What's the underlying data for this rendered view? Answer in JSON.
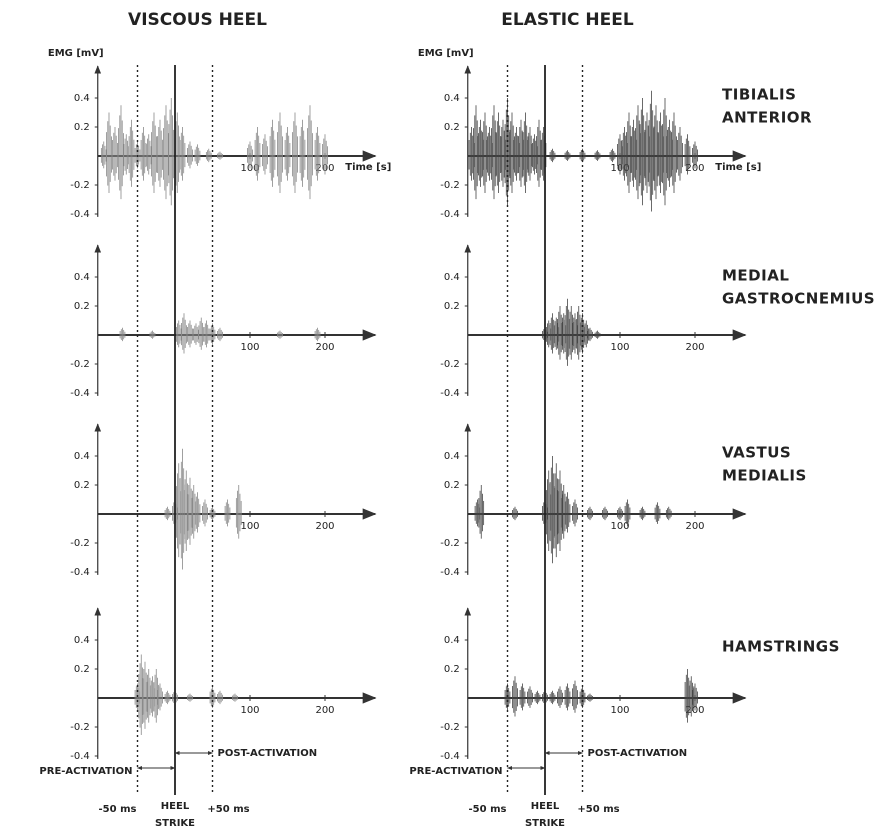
{
  "chart_data": [
    {
      "type": "emg",
      "title": "VISCOUS HEEL",
      "ylabel": "EMG [mV]",
      "xlabel": "Time [s]",
      "xlim": [
        -103,
        267
      ],
      "ylim": [
        -0.42,
        0.62
      ],
      "xticks": [
        100,
        200
      ],
      "yticks": [
        -0.4,
        -0.2,
        0.2,
        0.4
      ],
      "markers": [
        -50,
        0,
        50
      ],
      "annotations": {
        "pre": "PRE-ACTIVATION",
        "post": "POST-ACTIVATION",
        "minus": "-50 ms",
        "heel": "HEEL",
        "strike": "STRIKE",
        "plus": "+50 ms"
      },
      "panels": [
        {
          "t": [
            -95,
            -88,
            -80,
            -72,
            -65,
            -58,
            -50,
            -42,
            -35,
            -28,
            -20,
            -12,
            -5,
            3,
            10,
            20,
            30,
            45,
            60,
            100,
            110,
            120,
            130,
            140,
            150,
            160,
            170,
            180,
            190,
            200
          ],
          "amp": [
            0.1,
            0.3,
            0.2,
            0.35,
            0.15,
            0.25,
            0.1,
            0.2,
            0.15,
            0.3,
            0.25,
            0.35,
            0.4,
            0.3,
            0.2,
            0.1,
            0.08,
            0.05,
            0.03,
            0.1,
            0.2,
            0.15,
            0.25,
            0.3,
            0.2,
            0.3,
            0.25,
            0.35,
            0.2,
            0.15
          ]
        },
        {
          "t": [
            -70,
            -30,
            5,
            12,
            20,
            28,
            35,
            42,
            50,
            60,
            140,
            190
          ],
          "amp": [
            0.05,
            0.03,
            0.1,
            0.15,
            0.1,
            0.08,
            0.12,
            0.1,
            0.08,
            0.05,
            0.03,
            0.05
          ]
        },
        {
          "t": [
            -10,
            0,
            5,
            10,
            15,
            20,
            25,
            30,
            40,
            50,
            70,
            85
          ],
          "amp": [
            0.05,
            0.1,
            0.35,
            0.45,
            0.3,
            0.25,
            0.2,
            0.15,
            0.1,
            0.05,
            0.1,
            0.2
          ]
        },
        {
          "t": [
            -50,
            -45,
            -40,
            -35,
            -30,
            -25,
            -20,
            -10,
            0,
            20,
            50,
            60,
            80
          ],
          "amp": [
            0.1,
            0.3,
            0.25,
            0.2,
            0.15,
            0.2,
            0.1,
            0.05,
            0.05,
            0.03,
            0.08,
            0.05,
            0.03
          ]
        }
      ]
    },
    {
      "type": "emg",
      "title": "ELASTIC HEEL",
      "ylabel": "EMG [mV]",
      "xlabel": "Time [s]",
      "xlim": [
        -103,
        267
      ],
      "ylim": [
        -0.42,
        0.62
      ],
      "xticks": [
        100,
        200
      ],
      "yticks": [
        -0.4,
        -0.2,
        0.2,
        0.4
      ],
      "markers": [
        -50,
        0,
        50
      ],
      "annotations": {
        "pre": "PRE-ACTIVATION",
        "post": "POST-ACTIVATION",
        "minus": "-50 ms",
        "heel": "HEEL",
        "strike": "STRIKE",
        "plus": "+50 ms"
      },
      "panels": [
        {
          "t": [
            -98,
            -92,
            -86,
            -80,
            -74,
            -68,
            -62,
            -56,
            -50,
            -44,
            -38,
            -32,
            -26,
            -20,
            -14,
            -8,
            -2,
            10,
            30,
            50,
            70,
            90,
            100,
            106,
            112,
            118,
            124,
            130,
            136,
            142,
            148,
            154,
            160,
            166,
            172,
            180,
            190,
            200
          ],
          "amp": [
            0.2,
            0.35,
            0.25,
            0.3,
            0.2,
            0.35,
            0.3,
            0.25,
            0.4,
            0.3,
            0.2,
            0.25,
            0.3,
            0.2,
            0.15,
            0.25,
            0.2,
            0.05,
            0.04,
            0.05,
            0.04,
            0.05,
            0.15,
            0.2,
            0.3,
            0.25,
            0.35,
            0.4,
            0.3,
            0.45,
            0.35,
            0.3,
            0.4,
            0.25,
            0.3,
            0.2,
            0.15,
            0.1
          ]
        },
        {
          "t": [
            0,
            5,
            10,
            15,
            20,
            25,
            30,
            35,
            40,
            45,
            50,
            55,
            60,
            70
          ],
          "amp": [
            0.05,
            0.1,
            0.15,
            0.12,
            0.2,
            0.15,
            0.25,
            0.2,
            0.15,
            0.2,
            0.15,
            0.1,
            0.05,
            0.03
          ]
        },
        {
          "t": [
            -90,
            -85,
            -40,
            0,
            5,
            10,
            15,
            20,
            25,
            30,
            40,
            60,
            80,
            100,
            110,
            130,
            150,
            165
          ],
          "amp": [
            0.1,
            0.2,
            0.05,
            0.1,
            0.3,
            0.4,
            0.35,
            0.3,
            0.2,
            0.15,
            0.1,
            0.05,
            0.05,
            0.05,
            0.1,
            0.05,
            0.08,
            0.05
          ]
        },
        {
          "t": [
            -50,
            -40,
            -30,
            -20,
            -10,
            0,
            10,
            20,
            30,
            40,
            50,
            60,
            190,
            195,
            200
          ],
          "amp": [
            0.1,
            0.15,
            0.1,
            0.08,
            0.05,
            0.05,
            0.05,
            0.08,
            0.1,
            0.12,
            0.08,
            0.03,
            0.2,
            0.15,
            0.1
          ]
        }
      ]
    }
  ],
  "muscles": [
    [
      "TIBIALIS",
      "ANTERIOR"
    ],
    [
      "MEDIAL",
      "GASTROCNEMIUS"
    ],
    [
      "VASTUS",
      "MEDIALIS"
    ],
    [
      "HAMSTRINGS"
    ]
  ]
}
